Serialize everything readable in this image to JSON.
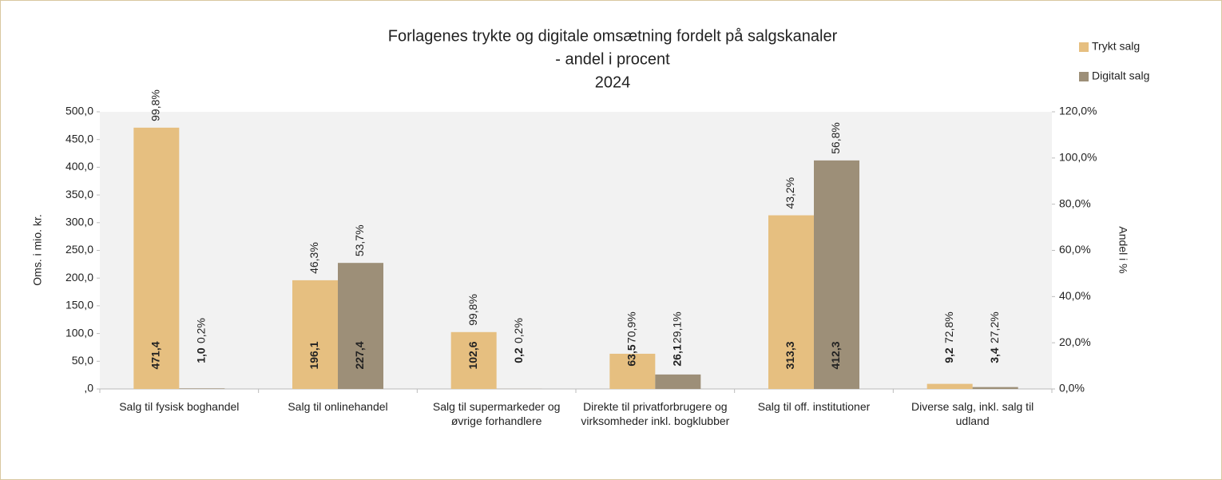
{
  "chart_data": {
    "type": "bar",
    "title": [
      "Forlagenes trykte og digitale omsætning fordelt på salgskanaler",
      "- andel i procent",
      "2024"
    ],
    "y_label": "Oms. i mio. kr.",
    "y2_label": "Andel i %",
    "categories": [
      "Salg til fysisk boghandel",
      "Salg til onlinehandel",
      "Salg til supermarkeder og øvrige forhandlere",
      "Direkte til privatforbrugere og virksomheder inkl. bogklubber",
      "Salg til off. institutioner",
      "Diverse salg, inkl. salg til udland"
    ],
    "series": [
      {
        "name": "Trykt salg",
        "color": "#e6bf80",
        "values": [
          471.4,
          196.1,
          102.6,
          63.5,
          313.3,
          9.2
        ],
        "value_labels": [
          "471,4",
          "196,1",
          "102,6",
          "63,5",
          "313,3",
          "9,2"
        ],
        "share_values": [
          99.8,
          46.3,
          99.8,
          70.9,
          43.2,
          72.8
        ],
        "share_labels": [
          "99,8%",
          "46,3%",
          "99,8%",
          "70,9%",
          "43,2%",
          "72,8%"
        ]
      },
      {
        "name": "Digitalt salg",
        "color": "#9d8f78",
        "values": [
          1.0,
          227.4,
          0.2,
          26.1,
          412.3,
          3.4
        ],
        "value_labels": [
          "1,0",
          "227,4",
          "0,2",
          "26,1",
          "412,3",
          "3,4"
        ],
        "share_values": [
          0.2,
          53.7,
          0.2,
          29.1,
          56.8,
          27.2
        ],
        "share_labels": [
          "0,2%",
          "53,7%",
          "0,2%",
          "29,1%",
          "56,8%",
          "27,2%"
        ]
      }
    ],
    "ylim": [
      0,
      500
    ],
    "yticks": [
      {
        "value": 0,
        "label": ",0"
      },
      {
        "value": 50,
        "label": "50,0"
      },
      {
        "value": 100,
        "label": "100,0"
      },
      {
        "value": 150,
        "label": "150,0"
      },
      {
        "value": 200,
        "label": "200,0"
      },
      {
        "value": 250,
        "label": "250,0"
      },
      {
        "value": 300,
        "label": "300,0"
      },
      {
        "value": 350,
        "label": "350,0"
      },
      {
        "value": 400,
        "label": "400,0"
      },
      {
        "value": 450,
        "label": "450,0"
      },
      {
        "value": 500,
        "label": "500,0"
      }
    ],
    "y2lim": [
      0,
      120
    ],
    "y2ticks": [
      {
        "value": 0,
        "label": "0,0%"
      },
      {
        "value": 20,
        "label": "20,0%"
      },
      {
        "value": 40,
        "label": "40,0%"
      },
      {
        "value": 60,
        "label": "60,0%"
      },
      {
        "value": 80,
        "label": "80,0%"
      },
      {
        "value": 100,
        "label": "100,0%"
      },
      {
        "value": 120,
        "label": "120,0%"
      }
    ],
    "legend": "top-right",
    "plot_background": "#f2f2f2"
  }
}
